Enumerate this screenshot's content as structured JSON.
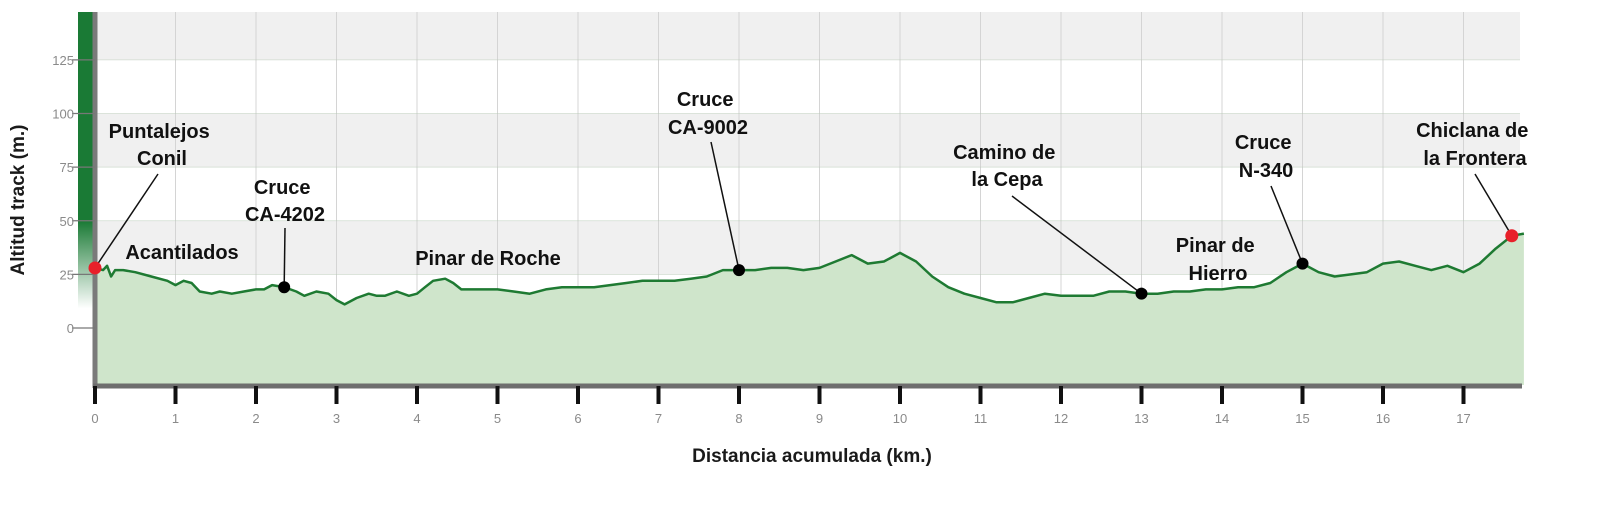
{
  "colors": {
    "line": "#1e7a32",
    "fill": "#cfe5cb",
    "band": "#f0f0f0",
    "grid": "#d4d4d4",
    "axis": "#6a6a6a",
    "endpoint": "#e8202a",
    "waypoint": "#000000",
    "left_bar": "#1a7a35"
  },
  "chart_data": {
    "type": "area",
    "xlabel": "Distancia acumulada (km.)",
    "ylabel": "Altitud track (m.)",
    "xlim": [
      0,
      17.75
    ],
    "ylim": [
      -27,
      148
    ],
    "x_ticks": [
      "0",
      "1",
      "2",
      "3",
      "4",
      "5",
      "6",
      "7",
      "8",
      "9",
      "10",
      "11",
      "12",
      "13",
      "14",
      "15",
      "16",
      "17"
    ],
    "y_ticks": [
      "0",
      "25",
      "50",
      "75",
      "100",
      "125"
    ],
    "grid": true,
    "x": [
      0,
      0.1,
      0.15,
      0.2,
      0.25,
      0.35,
      0.5,
      0.7,
      0.9,
      1.0,
      1.1,
      1.2,
      1.3,
      1.45,
      1.55,
      1.7,
      1.85,
      2.0,
      2.1,
      2.2,
      2.35,
      2.5,
      2.6,
      2.75,
      2.9,
      3.0,
      3.1,
      3.25,
      3.4,
      3.5,
      3.6,
      3.75,
      3.9,
      4.0,
      4.1,
      4.2,
      4.35,
      4.45,
      4.55,
      4.65,
      4.8,
      5.0,
      5.2,
      5.4,
      5.6,
      5.8,
      6.0,
      6.2,
      6.4,
      6.6,
      6.8,
      7.0,
      7.2,
      7.4,
      7.6,
      7.8,
      8.0,
      8.2,
      8.4,
      8.6,
      8.8,
      9.0,
      9.2,
      9.4,
      9.6,
      9.8,
      10.0,
      10.2,
      10.4,
      10.6,
      10.8,
      11.0,
      11.2,
      11.4,
      11.6,
      11.8,
      12.0,
      12.2,
      12.4,
      12.6,
      12.8,
      13.0,
      13.2,
      13.4,
      13.6,
      13.8,
      14.0,
      14.2,
      14.4,
      14.6,
      14.8,
      15.0,
      15.2,
      15.4,
      15.6,
      15.8,
      16.0,
      16.2,
      16.4,
      16.6,
      16.8,
      17.0,
      17.2,
      17.4,
      17.6,
      17.75
    ],
    "y": [
      28,
      27,
      29,
      24,
      27,
      27,
      26,
      24,
      22,
      20,
      22,
      21,
      17,
      16,
      17,
      16,
      17,
      18,
      18,
      20,
      19,
      17,
      15,
      17,
      16,
      13,
      11,
      14,
      16,
      15,
      15,
      17,
      15,
      16,
      19,
      22,
      23,
      21,
      18,
      18,
      18,
      18,
      17,
      16,
      18,
      19,
      19,
      19,
      20,
      21,
      22,
      22,
      22,
      23,
      24,
      27,
      27,
      27,
      28,
      28,
      27,
      28,
      31,
      34,
      30,
      31,
      35,
      31,
      24,
      19,
      16,
      14,
      12,
      12,
      14,
      16,
      15,
      15,
      15,
      17,
      17,
      16,
      16,
      17,
      17,
      18,
      18,
      19,
      19,
      21,
      26,
      30,
      26,
      24,
      25,
      26,
      30,
      31,
      29,
      27,
      29,
      26,
      30,
      37,
      43,
      44
    ],
    "endpoints": [
      {
        "x": 0,
        "y": 28
      },
      {
        "x": 17.6,
        "y": 43
      }
    ],
    "waypoints": [
      {
        "x": 2.35,
        "y": 19
      },
      {
        "x": 8.0,
        "y": 27
      },
      {
        "x": 13.0,
        "y": 16
      },
      {
        "x": 15.0,
        "y": 30
      }
    ],
    "annotations": [
      {
        "lines": [
          "Puntalejos",
          "Conil"
        ]
      },
      {
        "lines": [
          "Acantilados"
        ]
      },
      {
        "lines": [
          "Cruce",
          "CA-4202"
        ]
      },
      {
        "lines": [
          "Pinar de Roche"
        ]
      },
      {
        "lines": [
          "Cruce",
          "CA-9002"
        ]
      },
      {
        "lines": [
          "Camino de",
          "la Cepa"
        ]
      },
      {
        "lines": [
          "Pinar de",
          "Hierro"
        ]
      },
      {
        "lines": [
          "Cruce",
          "N-340"
        ]
      },
      {
        "lines": [
          "Chiclana de",
          "la Frontera"
        ]
      }
    ]
  }
}
